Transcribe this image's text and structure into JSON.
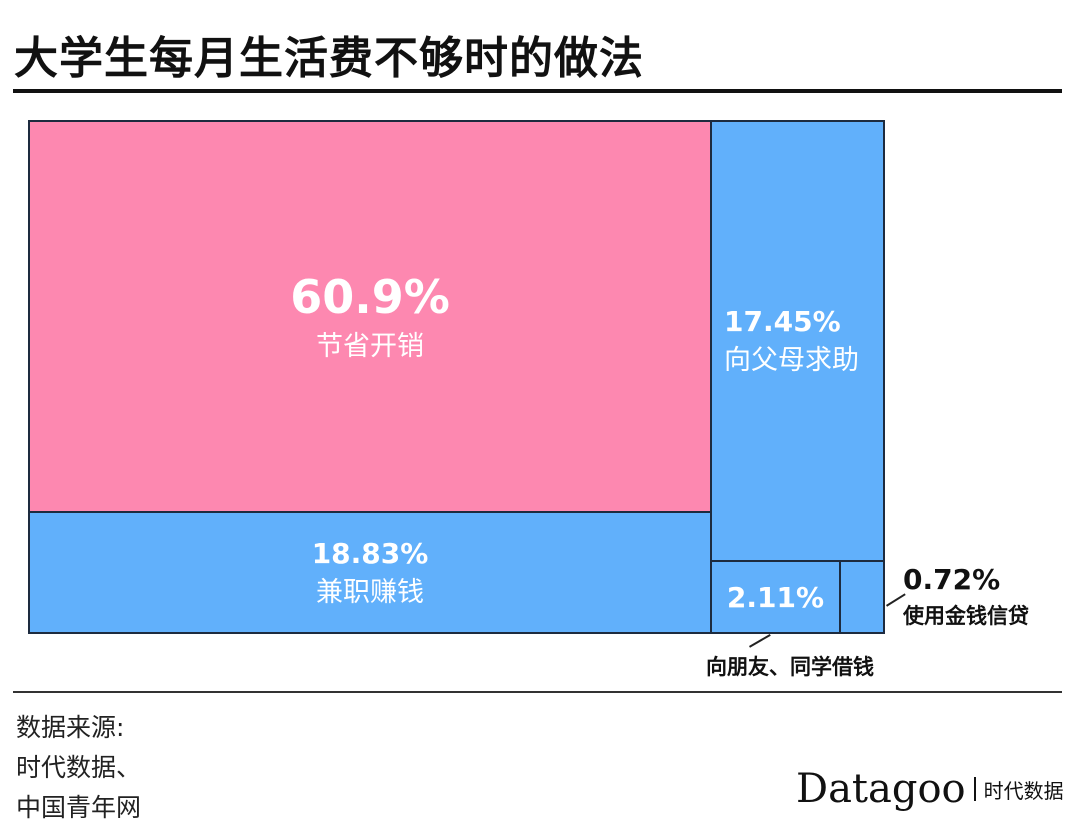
{
  "title": "大学生每月生活费不够时的做法",
  "chart_data": {
    "type": "treemap",
    "title": "大学生每月生活费不够时的做法",
    "unit": "%",
    "items": [
      {
        "label": "节省开销",
        "value": 60.9,
        "display": "60.9%",
        "color": "#fd88b0"
      },
      {
        "label": "兼职赚钱",
        "value": 18.83,
        "display": "18.83%",
        "color": "#61b0fb"
      },
      {
        "label": "向父母求助",
        "value": 17.45,
        "display": "17.45%",
        "color": "#61b0fb"
      },
      {
        "label": "向朋友、同学借钱",
        "value": 2.11,
        "display": "2.11%",
        "color": "#61b0fb"
      },
      {
        "label": "使用金钱信贷",
        "value": 0.72,
        "display": "0.72%",
        "color": "#61b0fb"
      }
    ]
  },
  "source": {
    "line1": "数据来源:",
    "line2": "时代数据、",
    "line3": "中国青年网"
  },
  "logo": {
    "en": "Datagoo",
    "cn": "时代数据"
  }
}
